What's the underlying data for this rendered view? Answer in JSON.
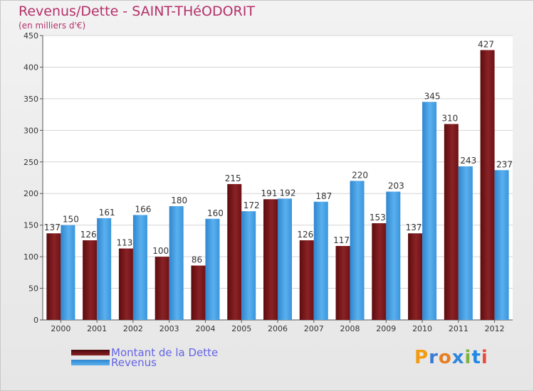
{
  "header": {
    "title": "Revenus/Dette - SAINT-THéODORIT",
    "subtitle": "(en milliers d'€)"
  },
  "colors": {
    "dette": "#7a1518",
    "revenus": "#3f9be0",
    "title": "#b5306a",
    "legend_text": "#6464e6"
  },
  "legend": {
    "dette_label": "Montant de la Dette",
    "revenus_label": "Revenus"
  },
  "logo": {
    "text": "Proxiti",
    "letter_colors": [
      "#f39c12",
      "#3a7bd5",
      "#e67e22",
      "#2e86de",
      "#7cb342",
      "#1e88e5",
      "#e74c3c"
    ]
  },
  "chart_data": {
    "type": "bar",
    "title": "Revenus/Dette - SAINT-THéODORIT",
    "ylabel": "(en milliers d'€)",
    "xlabel": "",
    "ylim": [
      0,
      450
    ],
    "yticks": [
      0,
      50,
      100,
      150,
      200,
      250,
      300,
      350,
      400,
      450
    ],
    "grid": true,
    "categories": [
      "2000",
      "2001",
      "2002",
      "2003",
      "2004",
      "2005",
      "2006",
      "2007",
      "2008",
      "2009",
      "2010",
      "2011",
      "2012"
    ],
    "series": [
      {
        "name": "Montant de la Dette",
        "values": [
          137,
          126,
          113,
          100,
          86,
          215,
          191,
          126,
          117,
          153,
          137,
          310,
          427
        ]
      },
      {
        "name": "Revenus",
        "values": [
          150,
          161,
          166,
          180,
          160,
          172,
          192,
          187,
          220,
          203,
          345,
          243,
          237
        ]
      }
    ]
  }
}
